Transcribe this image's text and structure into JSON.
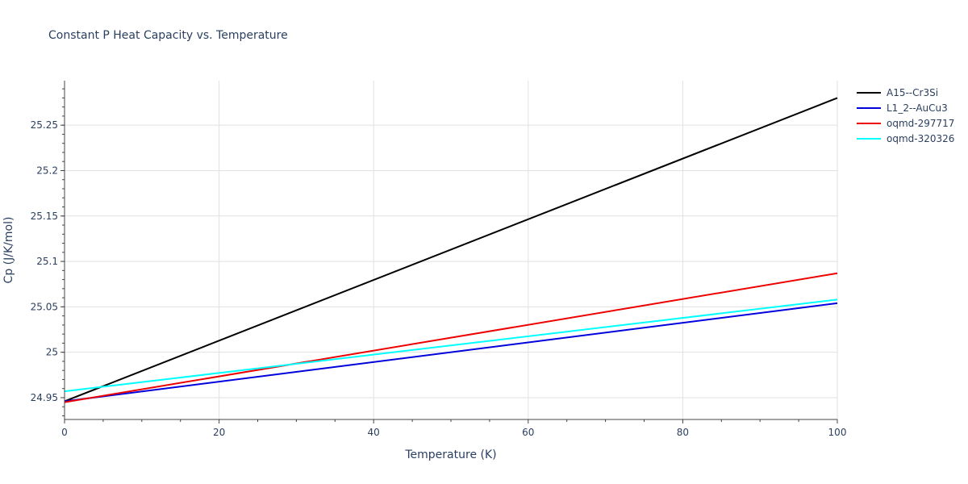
{
  "chart_data": {
    "type": "line",
    "title": "Constant P Heat Capacity vs. Temperature",
    "xlabel": "Temperature (K)",
    "ylabel": "Cp (J/K/mol)",
    "xlim": [
      0,
      100
    ],
    "ylim": [
      24.926,
      25.299
    ],
    "xticks": [
      0,
      20,
      40,
      60,
      80,
      100
    ],
    "xtick_labels": [
      "0",
      "20",
      "40",
      "60",
      "80",
      "100"
    ],
    "yticks": [
      24.95,
      25.0,
      25.05,
      25.1,
      25.15,
      25.2,
      25.25
    ],
    "ytick_labels": [
      "24.95",
      "25",
      "25.05",
      "25.1",
      "25.15",
      "25.2",
      "25.25"
    ],
    "grid": true,
    "legend_position": "right",
    "series": [
      {
        "name": "A15--Cr3Si",
        "color": "#000000",
        "x": [
          0,
          100
        ],
        "values": [
          24.946,
          25.28
        ]
      },
      {
        "name": "L1_2--AuCu3",
        "color": "#0000dd",
        "x": [
          0,
          100
        ],
        "values": [
          24.946,
          25.054
        ]
      },
      {
        "name": "oqmd-297717",
        "color": "#ee0000",
        "x": [
          0,
          100
        ],
        "values": [
          24.945,
          25.087
        ]
      },
      {
        "name": "oqmd-320326",
        "color": "#00ffff",
        "x": [
          0,
          100
        ],
        "values": [
          24.957,
          25.058
        ]
      }
    ]
  }
}
